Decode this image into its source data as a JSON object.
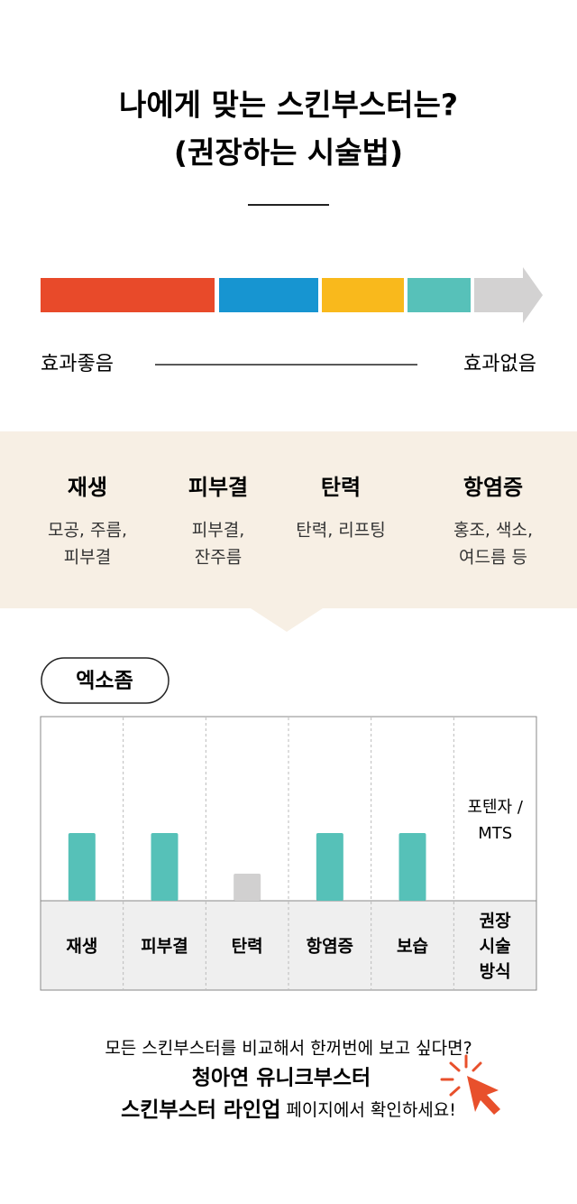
{
  "header": {
    "title_lines": [
      "나에게 맞는 스킨부스터는?",
      "(권장하는 시술법)"
    ]
  },
  "scale": {
    "left_label": "효과좋음",
    "right_label": "효과없음"
  },
  "effects": [
    {
      "name": "재생",
      "desc_lines": [
        "모공, 주름,",
        "피부결"
      ]
    },
    {
      "name": "피부결",
      "desc_lines": [
        "피부결,",
        "잔주름"
      ]
    },
    {
      "name": "탄력",
      "desc_lines": [
        "탄력, 리프팅"
      ]
    },
    {
      "name": "항염증",
      "desc_lines": [
        "홍조, 색소,",
        "여드름 등"
      ]
    }
  ],
  "chart_data": {
    "type": "bar",
    "tag": "엑소좀",
    "categories": [
      "재생",
      "피부결",
      "탄력",
      "항염증",
      "보습"
    ],
    "values": [
      5,
      5,
      2,
      5,
      5
    ],
    "colors": [
      "#56c1b8",
      "#56c1b8",
      "#d1d0d0",
      "#56c1b8",
      "#56c1b8"
    ],
    "method_lines": [
      "포텐자 /",
      "MTS"
    ],
    "corner_lines": [
      "권장",
      "시술",
      "방식"
    ]
  },
  "footer": {
    "line1": "모든 스킨부스터를 비교해서 한꺼번에 보고 싶다면?",
    "line2": "청아연 유니크부스터",
    "line3_bold": "스킨부스터 라인업",
    "line3_rest": " 페이지에서 확인하세요!"
  }
}
